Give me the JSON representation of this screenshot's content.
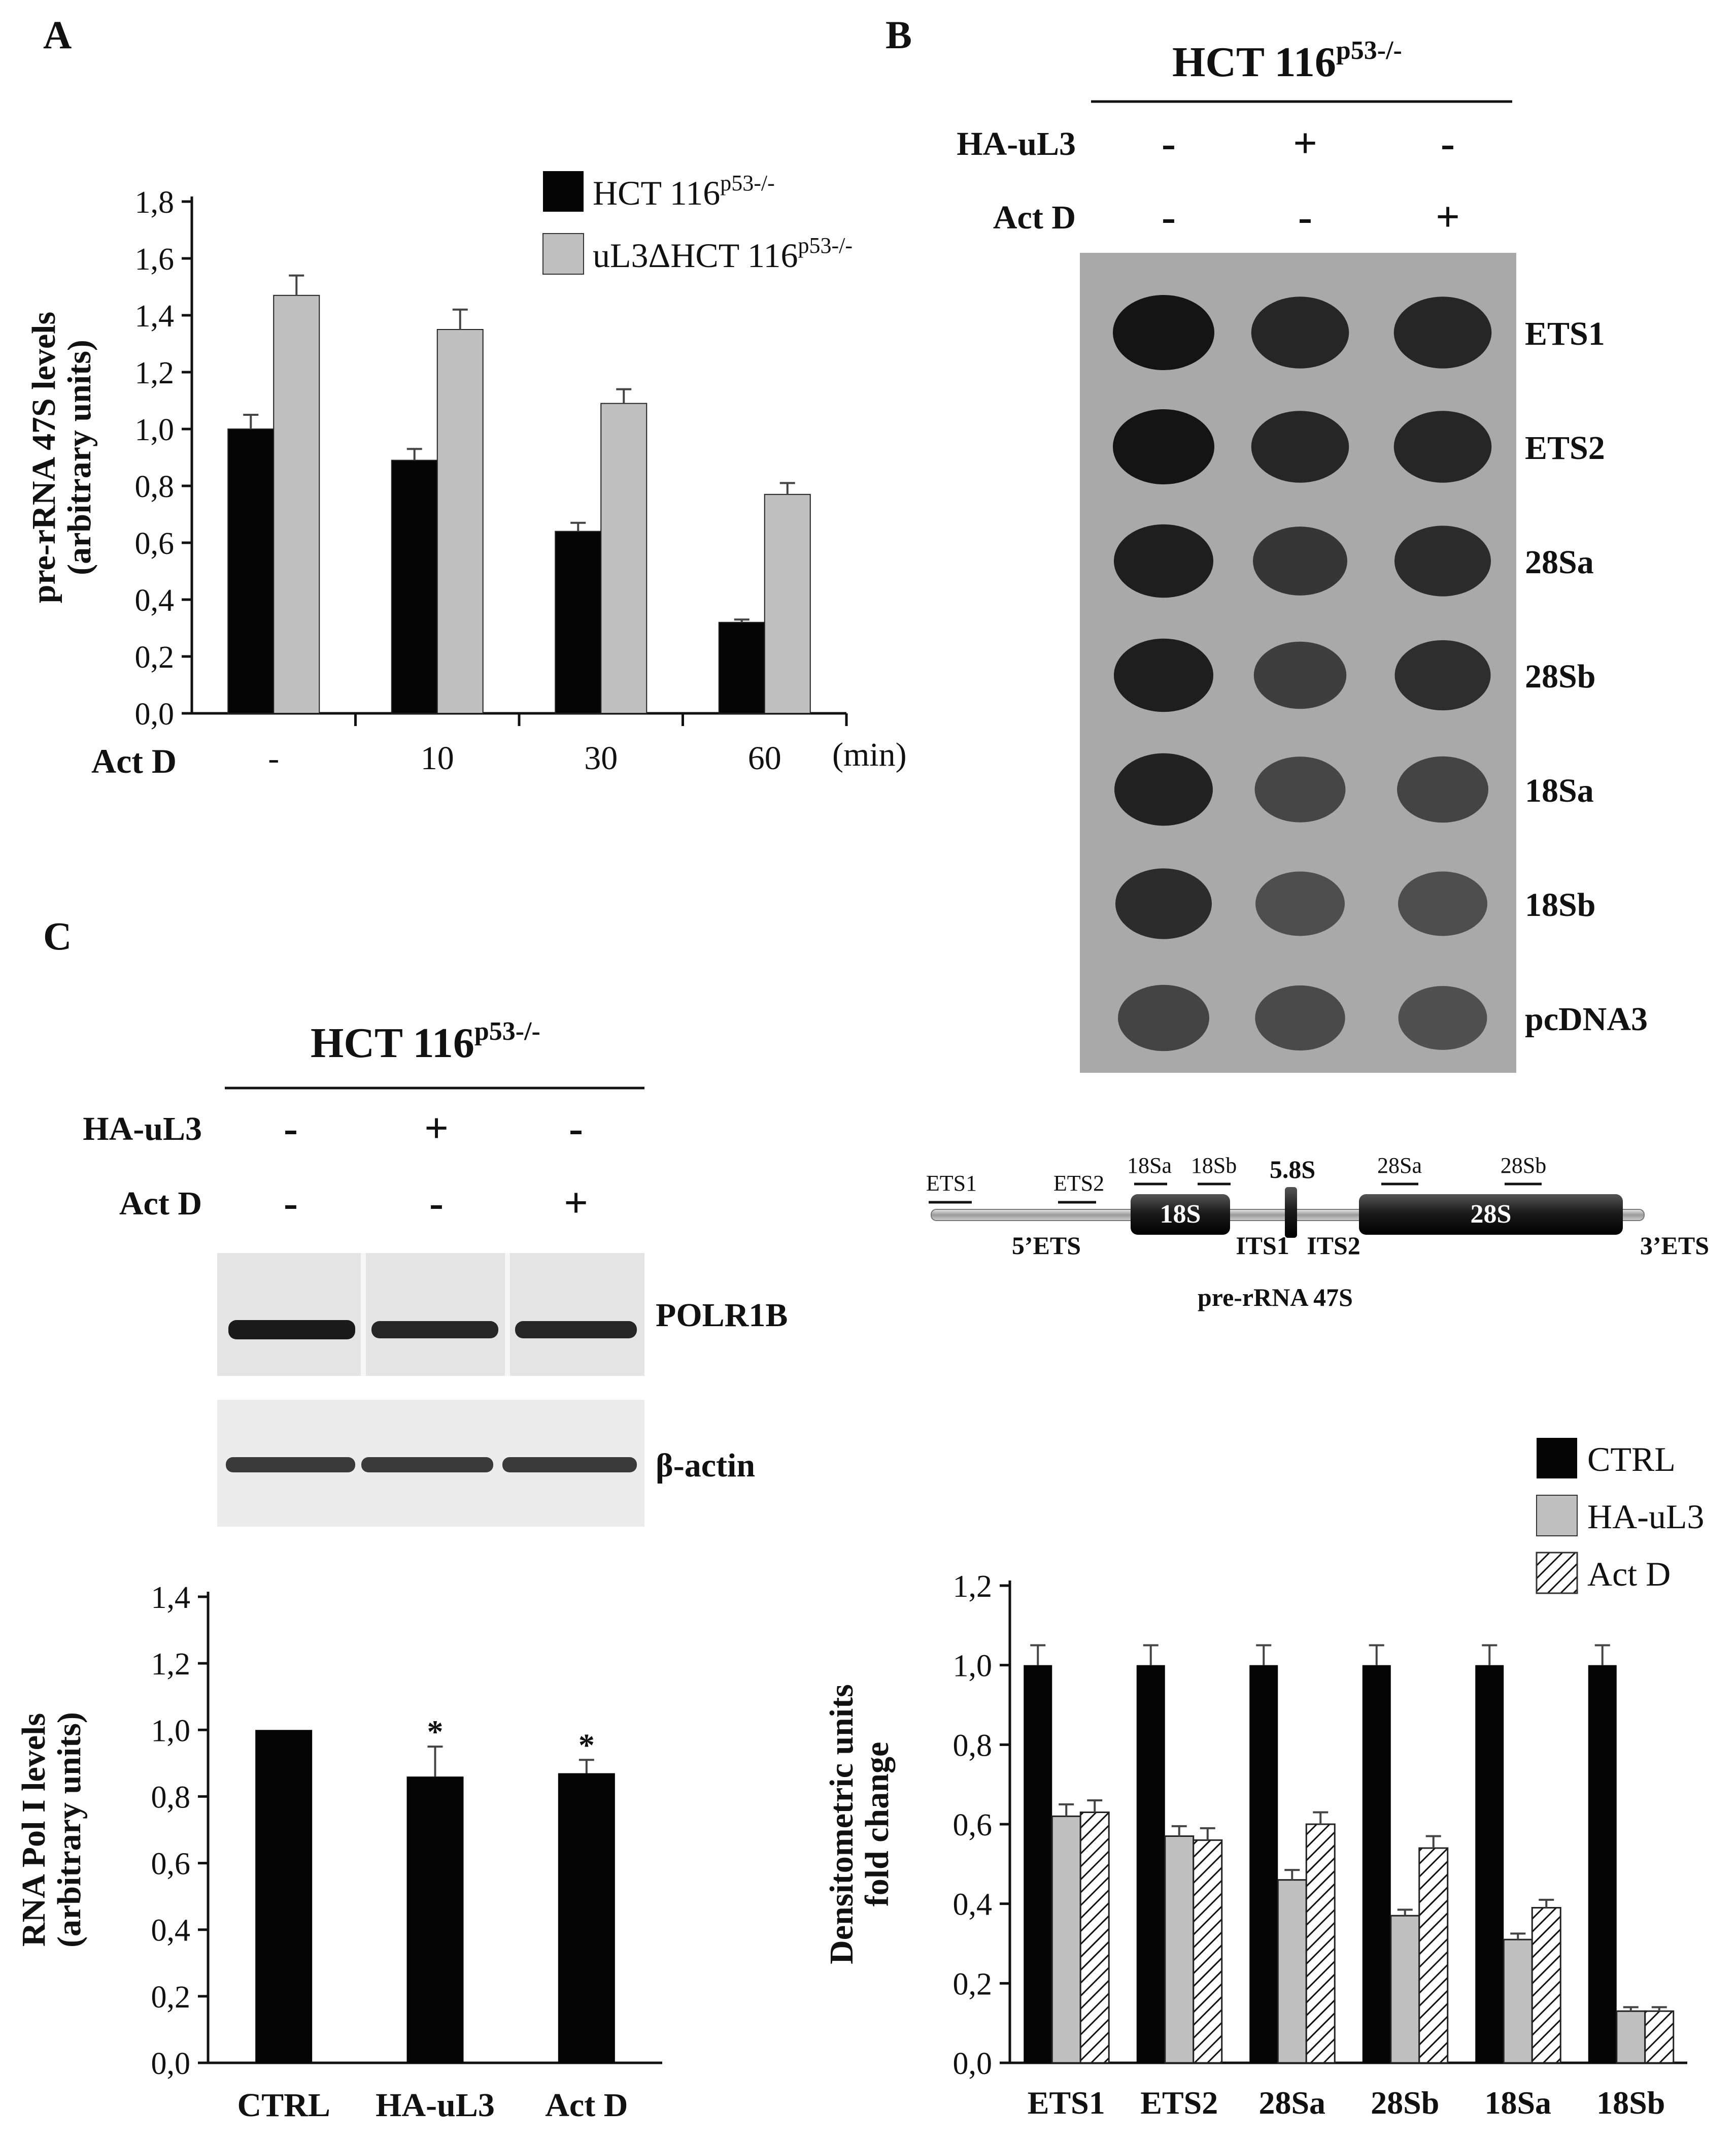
{
  "panels": {
    "A": "A",
    "B": "B",
    "C": "C"
  },
  "colors": {
    "black": "#050505",
    "gray": "#c0c0c0",
    "blot_bg": "#a9a9a9",
    "blot_dot": "#1e1e1e",
    "western_bg": "#e4e4e4"
  },
  "legend_A": {
    "item1": "HCT 116",
    "item2": "uL3ΔHCT 116",
    "sup": "p53-/-"
  },
  "legend_D": {
    "ctrl": "CTRL",
    "hauL3": "HA-uL3",
    "actd": "Act D"
  },
  "panel_B": {
    "header": "HCT 116",
    "header_sup": "p53-/-",
    "row1_label": "HA-uL3",
    "row2_label": "Act D",
    "row1_signs": [
      "-",
      "+",
      "-"
    ],
    "row2_signs": [
      "-",
      "-",
      "+"
    ],
    "probes": [
      "ETS1",
      "ETS2",
      "28Sa",
      "28Sb",
      "18Sa",
      "18Sb",
      "pcDNA3"
    ],
    "dot_intensity": [
      [
        1.0,
        0.85,
        0.85
      ],
      [
        1.0,
        0.85,
        0.85
      ],
      [
        0.92,
        0.72,
        0.8
      ],
      [
        0.92,
        0.65,
        0.78
      ],
      [
        0.88,
        0.58,
        0.6
      ],
      [
        0.8,
        0.52,
        0.52
      ],
      [
        0.6,
        0.55,
        0.5
      ]
    ]
  },
  "schematic": {
    "ets1": "ETS1",
    "ets2": "ETS2",
    "s18a": "18Sa",
    "s18b": "18Sb",
    "s58": "5.8S",
    "s28a": "28Sa",
    "s28b": "28Sb",
    "block18": "18S",
    "block28": "28S",
    "ets5": "5’ETS",
    "its1": "ITS1",
    "its2": "ITS2",
    "ets3": "3’ETS",
    "caption": "pre-rRNA 47S"
  },
  "panel_C": {
    "header": "HCT 116",
    "header_sup": "p53-/-",
    "row1_label": "HA-uL3",
    "row2_label": "Act D",
    "row1_signs": [
      "-",
      "+",
      "-"
    ],
    "row2_signs": [
      "-",
      "-",
      "+"
    ],
    "band1": "POLR1B",
    "band2": "β-actin"
  },
  "chart_data": [
    {
      "id": "A",
      "type": "bar",
      "ylabel": "pre-rRNA 47S levels",
      "ylabel2": "(arbitrary units)",
      "xlabel": "Act D",
      "unit": "(min)",
      "categories": [
        "-",
        "10",
        "30",
        "60"
      ],
      "ylim": [
        0,
        1.8
      ],
      "yticks": [
        "0,0",
        "0,2",
        "0,4",
        "0,6",
        "0,8",
        "1,0",
        "1,2",
        "1,4",
        "1,6",
        "1,8"
      ],
      "series": [
        {
          "values": [
            1.0,
            0.89,
            0.64,
            0.32
          ],
          "errors": [
            0.05,
            0.04,
            0.03,
            0.01
          ]
        },
        {
          "values": [
            1.47,
            1.35,
            1.09,
            0.77
          ],
          "errors": [
            0.07,
            0.07,
            0.05,
            0.04
          ]
        }
      ]
    },
    {
      "id": "C",
      "type": "bar",
      "ylabel": "RNA Pol I levels",
      "ylabel2": "(arbitrary units)",
      "categories": [
        "CTRL",
        "HA-uL3",
        "Act D"
      ],
      "ylim": [
        0,
        1.4
      ],
      "yticks": [
        "0,0",
        "0,2",
        "0,4",
        "0,6",
        "0,8",
        "1,0",
        "1,2",
        "1,4"
      ],
      "values": [
        1.0,
        0.86,
        0.87
      ],
      "errors": [
        0.0,
        0.09,
        0.04
      ],
      "annotations": [
        "",
        "*",
        "*"
      ]
    },
    {
      "id": "D",
      "type": "bar",
      "ylabel": "Densitometric units",
      "ylabel2": "fold change",
      "categories": [
        "ETS1",
        "ETS2",
        "28Sa",
        "28Sb",
        "18Sa",
        "18Sb"
      ],
      "ylim": [
        0,
        1.2
      ],
      "yticks": [
        "0,0",
        "0,2",
        "0,4",
        "0,6",
        "0,8",
        "1,0",
        "1,2"
      ],
      "series": [
        {
          "values": [
            1.0,
            1.0,
            1.0,
            1.0,
            1.0,
            1.0
          ],
          "errors": [
            0.05,
            0.05,
            0.05,
            0.05,
            0.05,
            0.05
          ]
        },
        {
          "values": [
            0.62,
            0.57,
            0.46,
            0.37,
            0.31,
            0.13
          ],
          "errors": [
            0.03,
            0.025,
            0.025,
            0.015,
            0.015,
            0.01
          ]
        },
        {
          "values": [
            0.63,
            0.56,
            0.6,
            0.54,
            0.39,
            0.13
          ],
          "errors": [
            0.03,
            0.03,
            0.03,
            0.03,
            0.02,
            0.01
          ]
        }
      ]
    }
  ]
}
